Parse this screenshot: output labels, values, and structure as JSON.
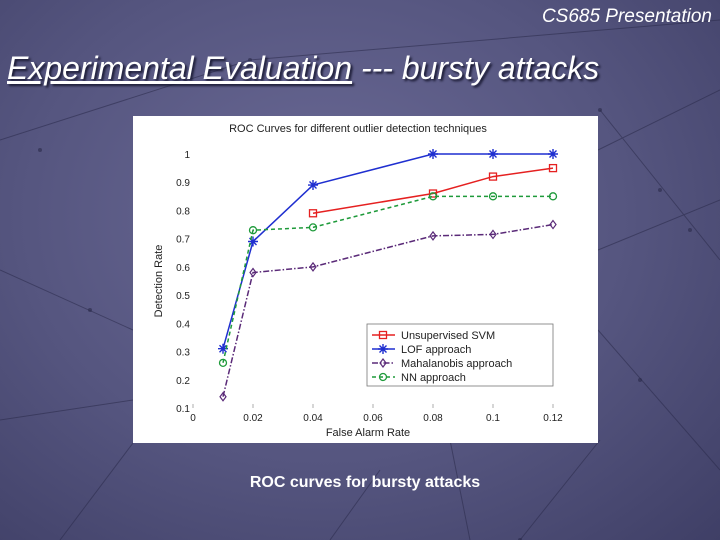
{
  "slide": {
    "header": "CS685 Presentation",
    "title_underlined": "Experimental Evaluation",
    "title_rest": " --- bursty attacks",
    "caption": "ROC curves for bursty attacks"
  },
  "chart_data": {
    "type": "line",
    "title": "ROC Curves for different outlier detection techniques",
    "xlabel": "False Alarm Rate",
    "ylabel": "Detection Rate",
    "xlim": [
      0,
      0.12
    ],
    "ylim": [
      0.1,
      1.0
    ],
    "x_ticks": [
      "0",
      "0.02",
      "0.04",
      "0.06",
      "0.08",
      "0.1",
      "0.12"
    ],
    "y_ticks": [
      "0.1",
      "0.2",
      "0.3",
      "0.4",
      "0.5",
      "0.6",
      "0.7",
      "0.8",
      "0.9",
      "1"
    ],
    "grid": false,
    "legend_position": "bottom-right",
    "series": [
      {
        "name": "Unsupervised SVM",
        "color": "#e52020",
        "marker": "square",
        "dash": "solid",
        "x": [
          0.04,
          0.08,
          0.1,
          0.12
        ],
        "y": [
          0.79,
          0.86,
          0.92,
          0.95
        ]
      },
      {
        "name": "LOF approach",
        "color": "#1f2fd0",
        "marker": "star",
        "dash": "solid",
        "x": [
          0.01,
          0.02,
          0.04,
          0.08,
          0.1,
          0.12
        ],
        "y": [
          0.31,
          0.69,
          0.89,
          1.0,
          1.0,
          1.0
        ]
      },
      {
        "name": "Mahalanobis approach",
        "color": "#5a2a78",
        "marker": "diamond",
        "dash": "dashdot",
        "x": [
          0.01,
          0.02,
          0.04,
          0.08,
          0.1,
          0.12
        ],
        "y": [
          0.14,
          0.58,
          0.6,
          0.71,
          0.715,
          0.75
        ]
      },
      {
        "name": "NN approach",
        "color": "#1e9a3a",
        "marker": "circle",
        "dash": "dashed",
        "x": [
          0.01,
          0.02,
          0.04,
          0.08,
          0.1,
          0.12
        ],
        "y": [
          0.26,
          0.73,
          0.74,
          0.85,
          0.85,
          0.85
        ]
      }
    ]
  }
}
